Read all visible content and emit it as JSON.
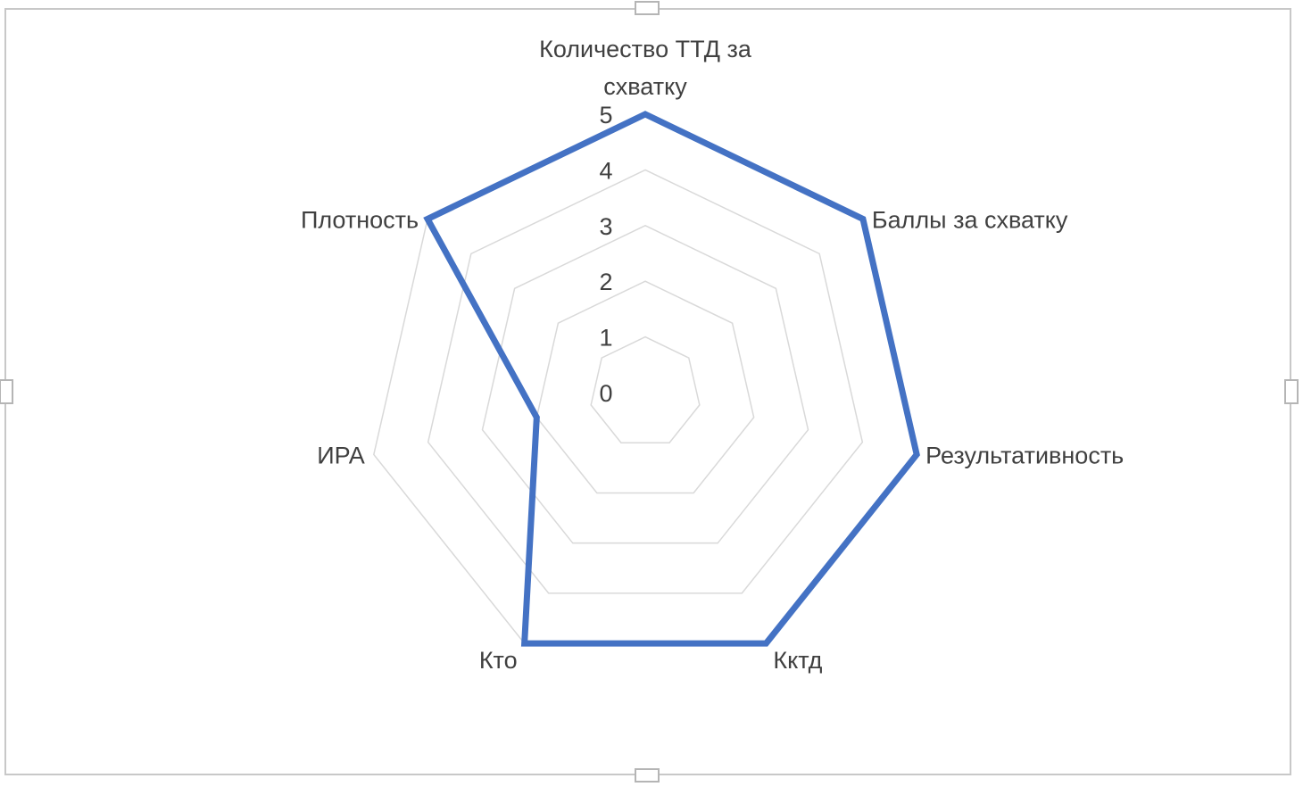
{
  "chart_data": {
    "type": "radar",
    "categories": [
      "Количество ТТД за схватку",
      "Баллы за схватку",
      "Результативность",
      "Кктд",
      "Кто",
      "ИРА",
      "Плотность"
    ],
    "series": [
      {
        "values": [
          5,
          5,
          5,
          5,
          5,
          2,
          5
        ]
      }
    ],
    "rlim": [
      0,
      5
    ],
    "ticks": [
      "0",
      "1",
      "2",
      "3",
      "4",
      "5"
    ],
    "grid": true,
    "legend": "none",
    "colors": {
      "series": "#4472c4",
      "grid": "#d9d9d9",
      "text": "#404040",
      "frame": "#c8c8c8"
    }
  }
}
